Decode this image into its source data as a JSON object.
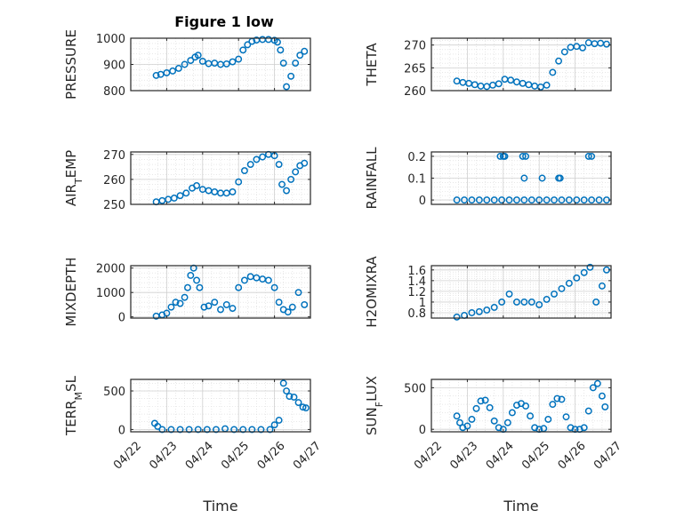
{
  "figure": {
    "title": "Figure 1 low"
  },
  "chart_data": [
    {
      "type": "scatter",
      "title": "Figure 1 low",
      "ylabel": "PRESSURE",
      "xlabel": "",
      "xlim": [
        "2021-04-22",
        "2021-04-27"
      ],
      "ylim": [
        800,
        1000
      ],
      "yticks": [
        800,
        900,
        1000
      ],
      "ytick_labels": [
        "800",
        "900",
        "1000"
      ],
      "xtick_labels": [],
      "grid": true,
      "minor_grid": true,
      "series": [
        {
          "color": "#0072BD",
          "x": [
            "2021-04-22T17:00",
            "2021-04-22T20:00",
            "2021-04-23T00:00",
            "2021-04-23T04:00",
            "2021-04-23T08:00",
            "2021-04-23T12:00",
            "2021-04-23T16:00",
            "2021-04-23T19:00",
            "2021-04-23T21:00",
            "2021-04-24T00:00",
            "2021-04-24T04:00",
            "2021-04-24T08:00",
            "2021-04-24T12:00",
            "2021-04-24T16:00",
            "2021-04-24T20:00",
            "2021-04-25T00:00",
            "2021-04-25T03:00",
            "2021-04-25T06:00",
            "2021-04-25T09:00",
            "2021-04-25T12:00",
            "2021-04-25T16:00",
            "2021-04-25T20:00",
            "2021-04-26T00:00",
            "2021-04-26T02:00",
            "2021-04-26T04:00",
            "2021-04-26T06:00",
            "2021-04-26T08:00",
            "2021-04-26T11:00",
            "2021-04-26T14:00",
            "2021-04-26T17:00",
            "2021-04-26T20:00"
          ],
          "y": [
            858,
            862,
            868,
            875,
            885,
            900,
            915,
            928,
            935,
            912,
            903,
            905,
            900,
            902,
            910,
            920,
            955,
            975,
            988,
            993,
            995,
            995,
            992,
            985,
            955,
            905,
            815,
            855,
            905,
            935,
            950
          ]
        }
      ]
    },
    {
      "type": "scatter",
      "ylabel": "THETA",
      "xlabel": "",
      "xlim": [
        "2021-04-22",
        "2021-04-27"
      ],
      "ylim": [
        260,
        271.5
      ],
      "yticks": [
        260,
        265,
        270
      ],
      "ytick_labels": [
        "260",
        "265",
        "270"
      ],
      "xtick_labels": [],
      "grid": true,
      "minor_grid": true,
      "series": [
        {
          "color": "#0072BD",
          "x": [
            "2021-04-22T17:00",
            "2021-04-22T21:00",
            "2021-04-23T01:00",
            "2021-04-23T05:00",
            "2021-04-23T09:00",
            "2021-04-23T13:00",
            "2021-04-23T17:00",
            "2021-04-23T21:00",
            "2021-04-24T01:00",
            "2021-04-24T05:00",
            "2021-04-24T09:00",
            "2021-04-24T13:00",
            "2021-04-24T17:00",
            "2021-04-24T21:00",
            "2021-04-25T01:00",
            "2021-04-25T05:00",
            "2021-04-25T09:00",
            "2021-04-25T13:00",
            "2021-04-25T17:00",
            "2021-04-25T21:00",
            "2021-04-26T01:00",
            "2021-04-26T05:00",
            "2021-04-26T09:00",
            "2021-04-26T13:00",
            "2021-04-26T17:00",
            "2021-04-26T21:00"
          ],
          "y": [
            262.1,
            261.8,
            261.6,
            261.3,
            261.0,
            260.9,
            261.2,
            261.5,
            262.5,
            262.3,
            261.9,
            261.6,
            261.3,
            261.0,
            260.8,
            261.2,
            264,
            266.5,
            268.5,
            269.5,
            269.7,
            269.4,
            270.5,
            270.3,
            270.4,
            270.2
          ]
        }
      ]
    },
    {
      "type": "scatter",
      "ylabel": "AIR_TEMP",
      "ylabel_main": "AIR",
      "ylabel_sub": "T",
      "ylabel_rest": "EMP",
      "xlabel": "",
      "xlim": [
        "2021-04-22",
        "2021-04-27"
      ],
      "ylim": [
        250,
        271
      ],
      "yticks": [
        250,
        260,
        270
      ],
      "ytick_labels": [
        "250",
        "260",
        "270"
      ],
      "xtick_labels": [],
      "grid": true,
      "minor_grid": true,
      "series": [
        {
          "color": "#0072BD",
          "x": [
            "2021-04-22T17:00",
            "2021-04-22T21:00",
            "2021-04-23T01:00",
            "2021-04-23T05:00",
            "2021-04-23T09:00",
            "2021-04-23T13:00",
            "2021-04-23T17:00",
            "2021-04-23T20:00",
            "2021-04-24T00:00",
            "2021-04-24T04:00",
            "2021-04-24T08:00",
            "2021-04-24T12:00",
            "2021-04-24T16:00",
            "2021-04-24T20:00",
            "2021-04-25T00:00",
            "2021-04-25T04:00",
            "2021-04-25T08:00",
            "2021-04-25T12:00",
            "2021-04-25T16:00",
            "2021-04-25T20:00",
            "2021-04-26T00:00",
            "2021-04-26T03:00",
            "2021-04-26T05:00",
            "2021-04-26T08:00",
            "2021-04-26T11:00",
            "2021-04-26T14:00",
            "2021-04-26T17:00",
            "2021-04-26T20:00"
          ],
          "y": [
            251,
            251.5,
            252,
            252.5,
            253.5,
            254.5,
            256.5,
            257.5,
            256,
            255.5,
            255,
            254.5,
            254.5,
            255,
            259,
            263.5,
            266,
            268,
            269,
            270,
            269.5,
            266,
            258,
            255.5,
            260,
            263,
            265.5,
            266.5
          ]
        }
      ]
    },
    {
      "type": "scatter",
      "ylabel": "RAINFALL",
      "xlabel": "",
      "xlim": [
        "2021-04-22",
        "2021-04-27"
      ],
      "ylim": [
        -0.02,
        0.22
      ],
      "yticks": [
        0,
        0.1,
        0.2
      ],
      "ytick_labels": [
        "0",
        "0.1",
        "0.2"
      ],
      "xtick_labels": [],
      "grid": true,
      "minor_grid": true,
      "series": [
        {
          "color": "#0072BD",
          "x": [
            "2021-04-22T17:00",
            "2021-04-22T22:00",
            "2021-04-23T03:00",
            "2021-04-23T08:00",
            "2021-04-23T13:00",
            "2021-04-23T18:00",
            "2021-04-23T23:00",
            "2021-04-24T04:00",
            "2021-04-24T09:00",
            "2021-04-24T14:00",
            "2021-04-24T19:00",
            "2021-04-25T00:00",
            "2021-04-25T05:00",
            "2021-04-25T10:00",
            "2021-04-25T15:00",
            "2021-04-25T20:00",
            "2021-04-26T01:00",
            "2021-04-26T06:00",
            "2021-04-26T11:00",
            "2021-04-26T16:00",
            "2021-04-26T21:00",
            "2021-04-23T22:00",
            "2021-04-24T00:00",
            "2021-04-24T01:00",
            "2021-04-24T13:00",
            "2021-04-24T15:00",
            "2021-04-24T14:00",
            "2021-04-25T02:00",
            "2021-04-25T13:00",
            "2021-04-25T14:00",
            "2021-04-26T09:00",
            "2021-04-26T11:00"
          ],
          "y": [
            0,
            0,
            0,
            0,
            0,
            0,
            0,
            0,
            0,
            0,
            0,
            0,
            0,
            0,
            0,
            0,
            0,
            0,
            0,
            0,
            0,
            0.2,
            0.2,
            0.2,
            0.2,
            0.2,
            0.1,
            0.1,
            0.1,
            0.1,
            0.2,
            0.2
          ]
        }
      ]
    },
    {
      "type": "scatter",
      "ylabel": "MIXDEPTH",
      "xlabel": "",
      "xlim": [
        "2021-04-22",
        "2021-04-27"
      ],
      "ylim": [
        -50,
        2100
      ],
      "yticks": [
        0,
        1000,
        2000
      ],
      "ytick_labels": [
        "0",
        "1000",
        "2000"
      ],
      "xtick_labels": [],
      "grid": true,
      "minor_grid": true,
      "series": [
        {
          "color": "#0072BD",
          "x": [
            "2021-04-22T17:00",
            "2021-04-22T21:00",
            "2021-04-23T00:00",
            "2021-04-23T03:00",
            "2021-04-23T06:00",
            "2021-04-23T09:00",
            "2021-04-23T12:00",
            "2021-04-23T14:00",
            "2021-04-23T16:00",
            "2021-04-23T18:00",
            "2021-04-23T20:00",
            "2021-04-23T22:00",
            "2021-04-24T01:00",
            "2021-04-24T04:00",
            "2021-04-24T08:00",
            "2021-04-24T12:00",
            "2021-04-24T16:00",
            "2021-04-24T20:00",
            "2021-04-25T00:00",
            "2021-04-25T04:00",
            "2021-04-25T08:00",
            "2021-04-25T12:00",
            "2021-04-25T16:00",
            "2021-04-25T20:00",
            "2021-04-26T00:00",
            "2021-04-26T03:00",
            "2021-04-26T06:00",
            "2021-04-26T09:00",
            "2021-04-26T12:00",
            "2021-04-26T16:00",
            "2021-04-26T20:00"
          ],
          "y": [
            30,
            80,
            150,
            400,
            600,
            550,
            800,
            1200,
            1700,
            2000,
            1500,
            1200,
            400,
            450,
            600,
            300,
            500,
            350,
            1200,
            1500,
            1650,
            1600,
            1550,
            1500,
            1200,
            600,
            300,
            200,
            400,
            1000,
            500
          ]
        }
      ]
    },
    {
      "type": "scatter",
      "ylabel": "H2OMIXRA",
      "xlabel": "",
      "xlim": [
        "2021-04-22",
        "2021-04-27"
      ],
      "ylim": [
        0.7,
        1.68
      ],
      "yticks": [
        0.8,
        1,
        1.2,
        1.4,
        1.6
      ],
      "ytick_labels": [
        "0.8",
        "1",
        "1.2",
        "1.4",
        "1.6"
      ],
      "xtick_labels": [],
      "grid": true,
      "minor_grid": true,
      "series": [
        {
          "color": "#0072BD",
          "x": [
            "2021-04-22T17:00",
            "2021-04-22T22:00",
            "2021-04-23T03:00",
            "2021-04-23T08:00",
            "2021-04-23T13:00",
            "2021-04-23T18:00",
            "2021-04-23T23:00",
            "2021-04-24T04:00",
            "2021-04-24T09:00",
            "2021-04-24T14:00",
            "2021-04-24T19:00",
            "2021-04-25T00:00",
            "2021-04-25T05:00",
            "2021-04-25T10:00",
            "2021-04-25T15:00",
            "2021-04-25T20:00",
            "2021-04-26T01:00",
            "2021-04-26T06:00",
            "2021-04-26T10:00",
            "2021-04-26T14:00",
            "2021-04-26T18:00",
            "2021-04-26T21:00"
          ],
          "y": [
            0.72,
            0.75,
            0.8,
            0.82,
            0.85,
            0.9,
            1.0,
            1.15,
            1.0,
            1.0,
            1.0,
            0.95,
            1.05,
            1.15,
            1.25,
            1.35,
            1.45,
            1.55,
            1.65,
            1.0,
            1.3,
            1.6
          ]
        }
      ]
    },
    {
      "type": "scatter",
      "ylabel": "TERR_MSL",
      "ylabel_main": "TERR",
      "ylabel_sub": "M",
      "ylabel_rest": "SL",
      "xlabel": "Time",
      "xlim": [
        "2021-04-22",
        "2021-04-27"
      ],
      "ylim": [
        -30,
        650
      ],
      "yticks": [
        0,
        500
      ],
      "ytick_labels": [
        "0",
        "500"
      ],
      "xticks": [
        "2021-04-22",
        "2021-04-23",
        "2021-04-24",
        "2021-04-25",
        "2021-04-26",
        "2021-04-27"
      ],
      "xtick_labels": [
        "04/22",
        "04/23",
        "04/24",
        "04/25",
        "04/26",
        "04/27"
      ],
      "grid": true,
      "minor_grid": true,
      "series": [
        {
          "color": "#0072BD",
          "x": [
            "2021-04-22T16:00",
            "2021-04-22T18:00",
            "2021-04-22T21:00",
            "2021-04-23T03:00",
            "2021-04-23T09:00",
            "2021-04-23T15:00",
            "2021-04-23T21:00",
            "2021-04-24T03:00",
            "2021-04-24T09:00",
            "2021-04-24T15:00",
            "2021-04-24T21:00",
            "2021-04-25T03:00",
            "2021-04-25T09:00",
            "2021-04-25T15:00",
            "2021-04-25T21:00",
            "2021-04-26T00:00",
            "2021-04-26T03:00",
            "2021-04-26T06:00",
            "2021-04-26T08:00",
            "2021-04-26T10:00",
            "2021-04-26T13:00",
            "2021-04-26T16:00",
            "2021-04-26T19:00",
            "2021-04-26T21:00"
          ],
          "y": [
            80,
            40,
            0,
            0,
            0,
            0,
            0,
            0,
            0,
            10,
            0,
            0,
            0,
            0,
            0,
            60,
            120,
            600,
            500,
            430,
            420,
            350,
            290,
            280
          ]
        }
      ]
    },
    {
      "type": "scatter",
      "ylabel": "SUN_FLUX",
      "ylabel_main": "SUN",
      "ylabel_sub": "F",
      "ylabel_rest": "LUX",
      "xlabel": "Time",
      "xlim": [
        "2021-04-22",
        "2021-04-27"
      ],
      "ylim": [
        -30,
        600
      ],
      "yticks": [
        0,
        500
      ],
      "ytick_labels": [
        "0",
        "500"
      ],
      "xticks": [
        "2021-04-22",
        "2021-04-23",
        "2021-04-24",
        "2021-04-25",
        "2021-04-26",
        "2021-04-27"
      ],
      "xtick_labels": [
        "04/22",
        "04/23",
        "04/24",
        "04/25",
        "04/26",
        "04/27"
      ],
      "grid": true,
      "minor_grid": true,
      "series": [
        {
          "color": "#0072BD",
          "x": [
            "2021-04-22T17:00",
            "2021-04-22T19:00",
            "2021-04-22T21:00",
            "2021-04-23T00:00",
            "2021-04-23T03:00",
            "2021-04-23T06:00",
            "2021-04-23T09:00",
            "2021-04-23T12:00",
            "2021-04-23T15:00",
            "2021-04-23T18:00",
            "2021-04-23T21:00",
            "2021-04-24T00:00",
            "2021-04-24T03:00",
            "2021-04-24T06:00",
            "2021-04-24T09:00",
            "2021-04-24T12:00",
            "2021-04-24T15:00",
            "2021-04-24T18:00",
            "2021-04-24T21:00",
            "2021-04-25T00:00",
            "2021-04-25T03:00",
            "2021-04-25T06:00",
            "2021-04-25T09:00",
            "2021-04-25T12:00",
            "2021-04-25T15:00",
            "2021-04-25T18:00",
            "2021-04-25T21:00",
            "2021-04-26T00:00",
            "2021-04-26T03:00",
            "2021-04-26T06:00",
            "2021-04-26T09:00",
            "2021-04-26T12:00",
            "2021-04-26T15:00",
            "2021-04-26T18:00",
            "2021-04-26T20:00"
          ],
          "y": [
            160,
            80,
            20,
            40,
            120,
            250,
            340,
            350,
            260,
            100,
            20,
            0,
            80,
            200,
            290,
            310,
            280,
            160,
            20,
            0,
            10,
            120,
            300,
            370,
            360,
            150,
            20,
            0,
            0,
            20,
            220,
            500,
            550,
            400,
            270
          ]
        }
      ]
    }
  ]
}
